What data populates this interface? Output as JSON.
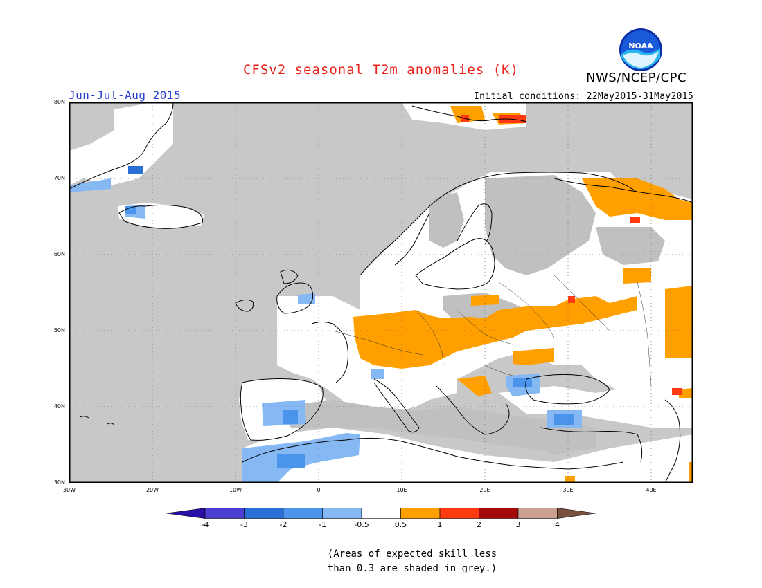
{
  "title": "CFSv2 seasonal T2m anomalies (K)",
  "season": "Jun-Jul-Aug 2015",
  "initial_conditions": "Initial conditions: 22May2015-31May2015",
  "agency": "NWS/NCEP/CPC",
  "logo": {
    "icon": "noaa-logo-icon",
    "text": "NOAA"
  },
  "colors": {
    "title": "#e8231a",
    "season": "#2a3fd6",
    "land_grey": "#c0c0c0",
    "ocean_grey": "#c8c8c8",
    "white_band": "#ffffff"
  },
  "map": {
    "y_ticks": [
      "80N",
      "70N",
      "60N",
      "50N",
      "40N",
      "30N"
    ],
    "x_ticks": [
      "30W",
      "20W",
      "10W",
      "0",
      "10E",
      "20E",
      "30E",
      "40E"
    ]
  },
  "colorbar": {
    "labels": [
      "-4",
      "-3",
      "-2",
      "-1",
      "-0.5",
      "0.5",
      "1",
      "2",
      "3",
      "4"
    ],
    "colors": [
      "#2a0fa8",
      "#4a3fd0",
      "#2a6fd6",
      "#4a94ec",
      "#86b9f4",
      "#ffffff",
      "#ff9f00",
      "#ff3a10",
      "#a40a0a",
      "#caa090",
      "#7a5040"
    ]
  },
  "note": {
    "line1": "(Areas of expected skill less",
    "line2": "than 0.3 are shaded in grey.)"
  }
}
